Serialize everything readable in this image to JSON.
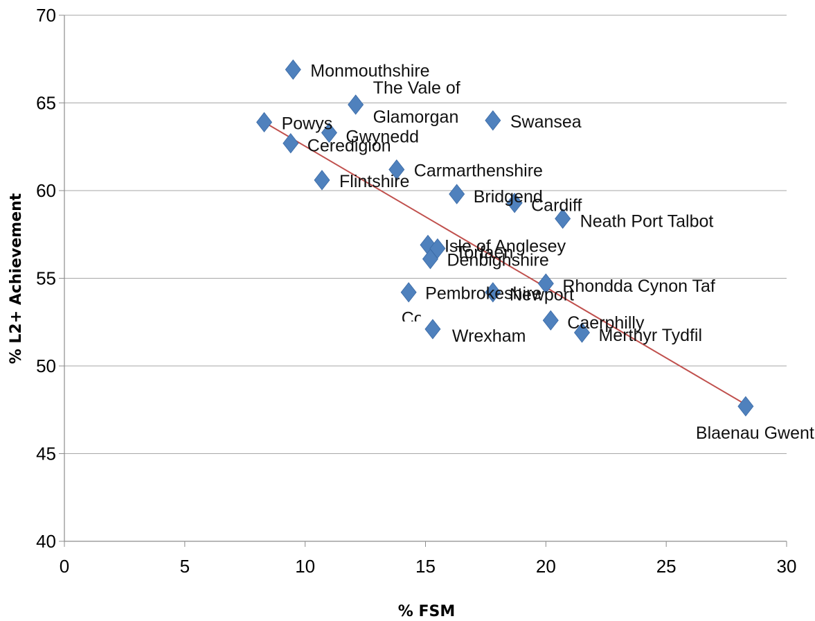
{
  "chart_data": {
    "type": "scatter",
    "title": "",
    "xlabel": "% FSM",
    "ylabel": "% L2+ Achievement",
    "xlim": [
      0,
      30
    ],
    "ylim": [
      40,
      70
    ],
    "x_ticks": [
      0,
      5,
      10,
      15,
      20,
      25,
      30
    ],
    "y_ticks": [
      40,
      45,
      50,
      55,
      60,
      65,
      70
    ],
    "grid": "horizontal",
    "legend": "none",
    "colors": {
      "marker": "#4F81BD",
      "trendline": "#C0504D",
      "grid": "#a6a6a6"
    },
    "trendline": {
      "type": "linear",
      "x": [
        8.3,
        28.3
      ],
      "y": [
        63.9,
        47.8
      ]
    },
    "points": [
      {
        "label": "Monmouthshire",
        "x": 9.5,
        "y": 66.9
      },
      {
        "label": "The Vale of Glamorgan",
        "x": 12.1,
        "y": 64.9
      },
      {
        "label": "Powys",
        "x": 8.3,
        "y": 63.9
      },
      {
        "label": "Gwynedd",
        "x": 11.0,
        "y": 63.3
      },
      {
        "label": "Swansea",
        "x": 17.8,
        "y": 64.0
      },
      {
        "label": "Ceredigion",
        "x": 9.4,
        "y": 62.7
      },
      {
        "label": "Carmarthenshire",
        "x": 13.8,
        "y": 61.2
      },
      {
        "label": "Flintshire",
        "x": 10.7,
        "y": 60.6
      },
      {
        "label": "Bridgend",
        "x": 16.3,
        "y": 59.8
      },
      {
        "label": "Cardiff",
        "x": 18.7,
        "y": 59.3
      },
      {
        "label": "Neath Port Talbot",
        "x": 20.7,
        "y": 58.4
      },
      {
        "label": "Isle of Anglesey",
        "x": 15.1,
        "y": 56.9
      },
      {
        "label": "Torfaen",
        "x": 15.5,
        "y": 56.7
      },
      {
        "label": "Denbighshire",
        "x": 15.2,
        "y": 56.1
      },
      {
        "label": "Rhondda Cynon Taf",
        "x": 20.0,
        "y": 54.7
      },
      {
        "label": "Pembrokeshire",
        "x": 14.3,
        "y": 54.2
      },
      {
        "label": "Newport",
        "x": 17.8,
        "y": 54.2
      },
      {
        "label": "Caerphilly",
        "x": 20.2,
        "y": 52.6
      },
      {
        "label": "Wrexham",
        "x": 15.3,
        "y": 52.1
      },
      {
        "label": "Merthyr Tydfil",
        "x": 21.5,
        "y": 51.9
      },
      {
        "label": "Blaenau Gwent",
        "x": 28.3,
        "y": 47.7
      },
      {
        "label": "Co",
        "x": 14.0,
        "y": 52.7,
        "label_only": true
      }
    ]
  }
}
